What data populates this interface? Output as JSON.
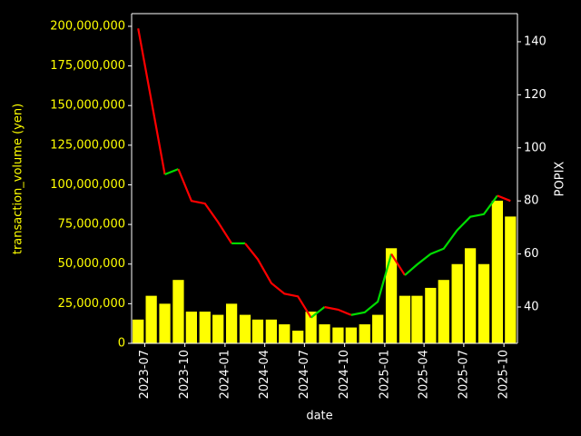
{
  "chart_data": {
    "type": "bar-line",
    "xlabel": "date",
    "ylabel": "transaction_volume (yen)",
    "y2label": "POPIX",
    "x": [
      "2023-06",
      "2023-07",
      "2023-08",
      "2023-09",
      "2023-10",
      "2023-11",
      "2023-12",
      "2024-01",
      "2024-02",
      "2024-03",
      "2024-04",
      "2024-05",
      "2024-06",
      "2024-07",
      "2024-08",
      "2024-09",
      "2024-10",
      "2024-11",
      "2024-12",
      "2025-01",
      "2025-02",
      "2025-03",
      "2025-04",
      "2025-05",
      "2025-06",
      "2025-07",
      "2025-08",
      "2025-09",
      "2025-10"
    ],
    "series": [
      {
        "type": "bar",
        "color": "#ffff00",
        "values": [
          15000000,
          30000000,
          25000000,
          40000000,
          20000000,
          20000000,
          18000000,
          25000000,
          18000000,
          15000000,
          15000000,
          12000000,
          8000000,
          20000000,
          12000000,
          10000000,
          10000000,
          12000000,
          18000000,
          60000000,
          30000000,
          30000000,
          35000000,
          40000000,
          50000000,
          60000000,
          50000000,
          90000000,
          80000000
        ]
      },
      {
        "type": "line",
        "axis": "y2",
        "up_color": "#00dd00",
        "down_color": "#ff0000",
        "values": [
          145,
          118,
          90,
          92,
          80,
          79,
          72,
          64,
          64,
          58,
          49,
          45,
          44,
          36,
          40,
          39,
          37,
          38,
          42,
          60,
          52,
          56,
          60,
          62,
          69,
          74,
          75,
          82,
          80
        ]
      }
    ],
    "xlim": [
      "2023-06",
      "2025-11"
    ],
    "xticks": [
      "2023-07",
      "2023-10",
      "2024-01",
      "2024-04",
      "2024-07",
      "2024-10",
      "2025-01",
      "2025-04",
      "2025-07",
      "2025-10"
    ],
    "ylim": [
      0,
      208000000
    ],
    "yticks": [
      0,
      {
        "value": 25000000,
        "label": "25,000,000"
      },
      {
        "value": 50000000,
        "label": "50,000,000"
      },
      {
        "value": 75000000,
        "label": "75,000,000"
      },
      {
        "value": 100000000,
        "label": "100,000,000"
      },
      {
        "value": 125000000,
        "label": "125,000,000"
      },
      {
        "value": 150000000,
        "label": "150,000,000"
      },
      {
        "value": 175000000,
        "label": "175,000,000"
      },
      {
        "value": 200000000,
        "label": "200,000,000"
      }
    ],
    "y2lim": [
      26.3,
      150.6
    ],
    "y2ticks": [
      40,
      60,
      80,
      100,
      120,
      140
    ]
  }
}
